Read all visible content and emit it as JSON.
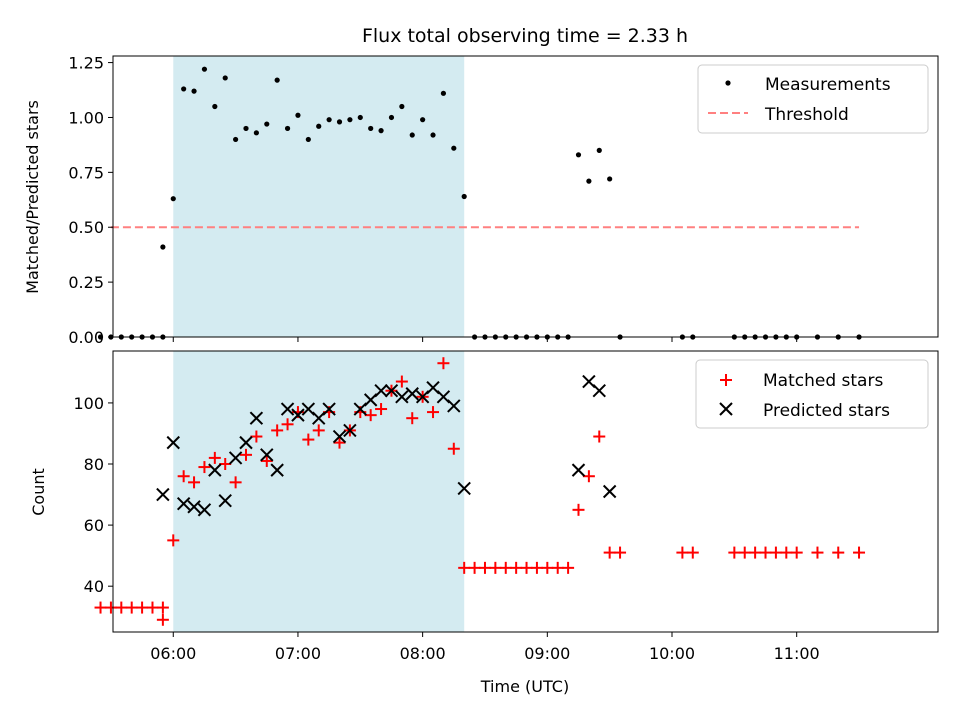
{
  "title": "Flux total observing time = 2.33 h",
  "xlabel": "Time (UTC)",
  "x_ticks": [
    "06:00",
    "07:00",
    "08:00",
    "09:00",
    "10:00",
    "11:00"
  ],
  "chart_data": [
    {
      "type": "scatter",
      "title": "Flux total observing time = 2.33 h",
      "xlabel": "",
      "ylabel": "Matched/Predicted stars",
      "xlim": [
        "05:31",
        "12:08"
      ],
      "ylim": [
        0,
        1.28
      ],
      "yticks": [
        "0.00",
        "0.25",
        "0.50",
        "0.75",
        "1.00",
        "1.25"
      ],
      "legend": "top-right",
      "highlight_span": {
        "from": "06:00",
        "to": "08:20",
        "color": "#d4ebf1"
      },
      "series": [
        {
          "name": "Measurements",
          "color": "#000000",
          "marker": "dot",
          "x": [
            "05:25",
            "05:30",
            "05:35",
            "05:40",
            "05:45",
            "05:50",
            "05:55",
            "05:55",
            "06:00",
            "06:05",
            "06:10",
            "06:15",
            "06:20",
            "06:25",
            "06:30",
            "06:35",
            "06:40",
            "06:45",
            "06:50",
            "06:55",
            "07:00",
            "07:05",
            "07:10",
            "07:15",
            "07:20",
            "07:25",
            "07:30",
            "07:35",
            "07:40",
            "07:45",
            "07:50",
            "07:55",
            "08:00",
            "08:05",
            "08:10",
            "08:15",
            "08:20",
            "08:25",
            "08:30",
            "08:35",
            "08:40",
            "08:45",
            "08:50",
            "08:55",
            "09:00",
            "09:05",
            "09:10",
            "09:15",
            "09:20",
            "09:25",
            "09:30",
            "09:35",
            "10:05",
            "10:10",
            "10:30",
            "10:35",
            "10:40",
            "10:45",
            "10:50",
            "10:55",
            "11:00",
            "11:10",
            "11:20",
            "11:30"
          ],
          "y": [
            0,
            0,
            0,
            0,
            0,
            0,
            0,
            0.41,
            0.63,
            1.13,
            1.12,
            1.22,
            1.05,
            1.18,
            0.9,
            0.95,
            0.93,
            0.97,
            1.17,
            0.95,
            1.01,
            0.9,
            0.96,
            0.99,
            0.98,
            0.99,
            1.0,
            0.95,
            0.94,
            1.0,
            1.05,
            0.92,
            0.99,
            0.92,
            1.11,
            0.86,
            0.64,
            0,
            0,
            0,
            0,
            0,
            0,
            0,
            0,
            0,
            0,
            0.83,
            0.71,
            0.85,
            0.72,
            0,
            0,
            0,
            0,
            0,
            0,
            0,
            0,
            0,
            0,
            0,
            0,
            0
          ]
        },
        {
          "name": "Threshold",
          "color": "#ff8080",
          "style": "dashed",
          "x": [
            "05:30",
            "11:30"
          ],
          "y": [
            0.5,
            0.5
          ]
        }
      ]
    },
    {
      "type": "scatter",
      "title": "",
      "xlabel": "Time (UTC)",
      "ylabel": "Count",
      "xlim": [
        "05:31",
        "12:08"
      ],
      "ylim": [
        25,
        117
      ],
      "yticks": [
        "40",
        "60",
        "80",
        "100"
      ],
      "legend": "top-right",
      "highlight_span": {
        "from": "06:00",
        "to": "08:20",
        "color": "#d4ebf1"
      },
      "series": [
        {
          "name": "Matched stars",
          "color": "#ff0000",
          "marker": "plus",
          "x": [
            "05:25",
            "05:30",
            "05:35",
            "05:40",
            "05:45",
            "05:50",
            "05:55",
            "05:55",
            "06:00",
            "06:05",
            "06:10",
            "06:15",
            "06:20",
            "06:25",
            "06:30",
            "06:35",
            "06:40",
            "06:45",
            "06:50",
            "06:55",
            "07:00",
            "07:05",
            "07:10",
            "07:15",
            "07:20",
            "07:25",
            "07:30",
            "07:35",
            "07:40",
            "07:45",
            "07:50",
            "07:55",
            "08:00",
            "08:05",
            "08:10",
            "08:15",
            "08:20",
            "08:25",
            "08:30",
            "08:35",
            "08:40",
            "08:45",
            "08:50",
            "08:55",
            "09:00",
            "09:05",
            "09:10",
            "09:15",
            "09:20",
            "09:25",
            "09:30",
            "09:35",
            "10:05",
            "10:10",
            "10:30",
            "10:35",
            "10:40",
            "10:45",
            "10:50",
            "10:55",
            "11:00",
            "11:10",
            "11:20",
            "11:30"
          ],
          "y": [
            33,
            33,
            33,
            33,
            33,
            33,
            33,
            29,
            55,
            76,
            74,
            79,
            82,
            80,
            74,
            83,
            89,
            81,
            91,
            93,
            97,
            88,
            91,
            97,
            87,
            91,
            97,
            96,
            98,
            104,
            107,
            95,
            102,
            97,
            113,
            85,
            46,
            46,
            46,
            46,
            46,
            46,
            46,
            46,
            46,
            46,
            46,
            65,
            76,
            89,
            51,
            51,
            51,
            51,
            51,
            51,
            51,
            51,
            51,
            51,
            51,
            51,
            51,
            51
          ]
        },
        {
          "name": "Predicted stars",
          "color": "#000000",
          "marker": "cross",
          "x": [
            "05:55",
            "06:00",
            "06:05",
            "06:10",
            "06:15",
            "06:20",
            "06:25",
            "06:30",
            "06:35",
            "06:40",
            "06:45",
            "06:50",
            "06:55",
            "07:00",
            "07:05",
            "07:10",
            "07:15",
            "07:20",
            "07:25",
            "07:30",
            "07:35",
            "07:40",
            "07:45",
            "07:50",
            "07:55",
            "08:00",
            "08:05",
            "08:10",
            "08:15",
            "08:20",
            "09:15",
            "09:20",
            "09:25",
            "09:30"
          ],
          "y": [
            70,
            87,
            67,
            66,
            65,
            78,
            68,
            82,
            87,
            95,
            83,
            78,
            98,
            96,
            98,
            95,
            98,
            89,
            91,
            98,
            101,
            104,
            104,
            102,
            103,
            102,
            105,
            102,
            99,
            72,
            78,
            107,
            104,
            71
          ]
        }
      ]
    }
  ]
}
